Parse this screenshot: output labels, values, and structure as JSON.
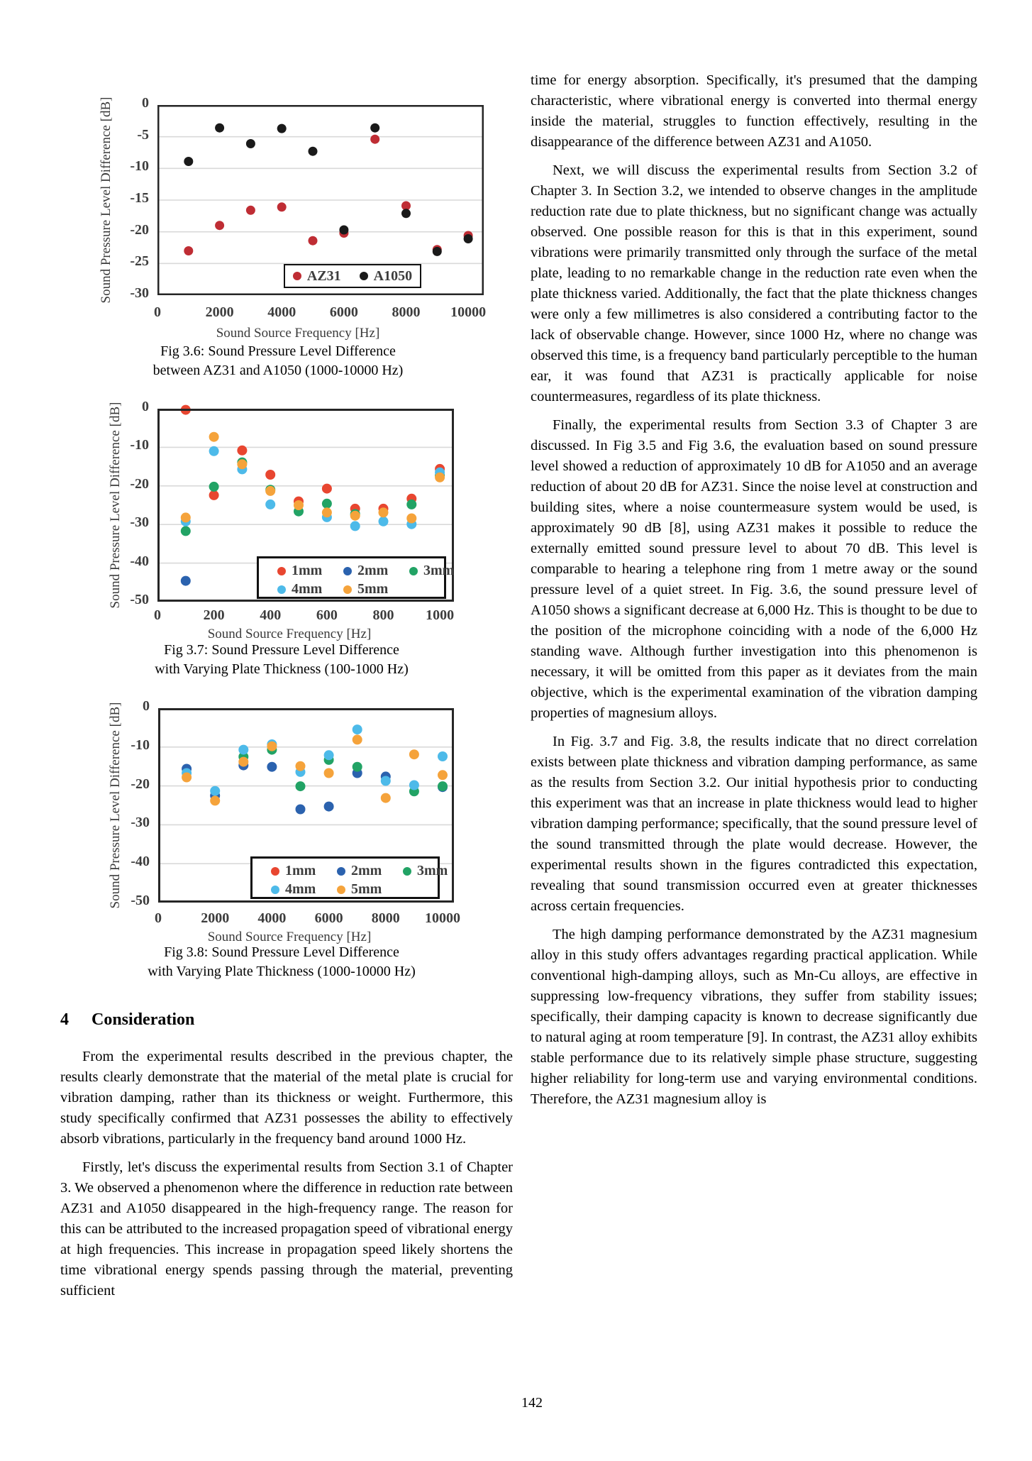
{
  "page": {
    "number": "142"
  },
  "left_column": {
    "section_heading": {
      "number": "4",
      "title": "Consideration"
    },
    "paragraphs": [
      "From the experimental results described in the previous chapter, the results clearly demonstrate that the material of the metal plate is crucial for vibration damping, rather than its thickness or weight. Furthermore, this study specifically confirmed that AZ31 possesses the ability to effectively absorb vibrations, particularly in the frequency band around 1000 Hz.",
      "Firstly, let's discuss the experimental results from Section 3.1 of Chapter 3. We observed a phenomenon where the difference in reduction rate between AZ31 and A1050 disappeared in the high-frequency range. The reason for this can be attributed to the increased propagation speed of vibrational energy at high frequencies. This increase in propagation speed likely shortens the time vibrational energy spends passing through the material, preventing sufficient"
    ]
  },
  "right_column": {
    "paragraphs": [
      "time for energy absorption. Specifically, it's presumed that the damping characteristic, where vibrational energy is converted into thermal energy inside the material, struggles to function effectively, resulting in the disappearance of the difference between AZ31 and A1050.",
      "Next, we will discuss the experimental results from Section 3.2 of Chapter 3. In Section 3.2, we intended to observe changes in the amplitude reduction rate due to plate thickness, but no significant change was actually observed. One possible reason for this is that in this experiment, sound vibrations were primarily transmitted only through the surface of the metal plate, leading to no remarkable change in the reduction rate even when the plate thickness varied. Additionally, the fact that the plate thickness changes were only a few millimetres is also considered a contributing factor to the lack of observable change. However, since 1000 Hz, where no change was observed this time, is a frequency band particularly perceptible to the human ear, it was found that AZ31 is practically applicable for noise countermeasures, regardless of its plate thickness.",
      "Finally, the experimental results from Section 3.3 of Chapter 3 are discussed. In Fig 3.5 and Fig 3.6, the evaluation based on sound pressure level showed a reduction of approximately 10 dB for A1050 and an average reduction of about 20 dB for AZ31. Since the noise level at construction and building sites, where a noise countermeasure system would be used, is approximately 90 dB [8], using AZ31 makes it possible to reduce the externally emitted sound pressure level to about 70 dB. This level is comparable to hearing a telephone ring from 1 metre away or the sound pressure level of a quiet street. In Fig. 3.6, the sound pressure level of A1050 shows a significant decrease at 6,000 Hz. This is thought to be due to the position of the microphone coinciding with a node of the 6,000 Hz standing wave. Although further investigation into this phenomenon is necessary, it will be omitted from this paper as it deviates from the main objective, which is the experimental examination of the vibration damping properties of magnesium alloys.",
      "In Fig. 3.7 and Fig. 3.8, the results indicate that no direct correlation exists between plate thickness and vibration damping performance, as same as the results from Section 3.2. Our initial hypothesis prior to conducting this experiment was that an increase in plate thickness would lead to higher vibration damping performance; specifically, that the sound pressure level of the sound transmitted through the plate would decrease. However, the experimental results shown in the figures contradicted this expectation, revealing that sound transmission occurred even at greater thicknesses across certain frequencies.",
      "The high damping performance demonstrated by the AZ31 magnesium alloy in this study offers advantages regarding practical application. While conventional high-damping alloys, such as Mn-Cu alloys, are effective in suppressing low-frequency vibrations, they suffer from stability issues; specifically, their damping capacity is known to decrease significantly due to natural aging at room temperature [9]. In contrast, the AZ31 alloy exhibits stable performance due to its relatively simple phase structure, suggesting higher reliability for long-term use and varying environmental conditions. Therefore, the AZ31 magnesium alloy is"
    ]
  },
  "figures": [
    {
      "id": "fig36",
      "caption_line1": "Fig 3.6: Sound Pressure Level Difference",
      "caption_line2": "between AZ31 and A1050 (1000-10000 Hz)",
      "xlabel": "Sound Source Frequency [Hz]",
      "ylabel": "Sound Pressure Level Difference [dB]",
      "chart_data": {
        "type": "scatter",
        "x": [
          1000,
          2000,
          3000,
          4000,
          5000,
          6000,
          7000,
          8000,
          9000,
          10000
        ],
        "series": [
          {
            "name": "AZ31",
            "color": "#bf2d34",
            "values": [
              -23.0,
              -19.0,
              -16.6,
              -16.1,
              -21.4,
              -20.2,
              -5.4,
              -15.9,
              -22.8,
              -20.6
            ]
          },
          {
            "name": "A1050",
            "color": "#1a1a1a",
            "values": [
              -8.9,
              -3.6,
              -6.1,
              -3.7,
              -7.3,
              -19.7,
              -3.6,
              -17.1,
              -23.1,
              -21.1
            ]
          }
        ],
        "x_ticks": [
          0,
          2000,
          4000,
          6000,
          8000,
          10000
        ],
        "y_ticks": [
          0,
          -5,
          -10,
          -15,
          -20,
          -25,
          -30
        ],
        "xlim": [
          0,
          10500
        ],
        "ylim": [
          -30,
          0
        ],
        "grid": true,
        "legend_position": "inside-bottom-right"
      }
    },
    {
      "id": "fig37",
      "caption_line1": "Fig 3.7: Sound Pressure Level Difference",
      "caption_line2": "with Varying Plate Thickness (100-1000 Hz)",
      "xlabel": "Sound Source Frequency [Hz]",
      "ylabel": "Sound Pressure Level Difference [dB]",
      "chart_data": {
        "type": "scatter",
        "x": [
          100,
          200,
          300,
          400,
          500,
          600,
          700,
          800,
          900,
          1000
        ],
        "series": [
          {
            "name": "1mm",
            "color": "#e84630",
            "values": [
              -0.3,
              -22.4,
              -10.8,
              -17.1,
              -24.0,
              -20.7,
              -25.9,
              -25.9,
              -23.3,
              -15.6
            ]
          },
          {
            "name": "2mm",
            "color": "#2b62ae",
            "values": [
              -44.6,
              null,
              null,
              null,
              null,
              null,
              null,
              null,
              null,
              null
            ]
          },
          {
            "name": "3mm",
            "color": "#22a365",
            "values": [
              -31.7,
              -20.2,
              -13.9,
              -21.0,
              -26.6,
              -24.6,
              -27.3,
              null,
              -24.8,
              -17.3
            ]
          },
          {
            "name": "4mm",
            "color": "#4dbae9",
            "values": [
              -29.2,
              -11.0,
              -15.7,
              -24.8,
              null,
              -28.1,
              -30.4,
              -29.2,
              -29.9,
              -16.5
            ]
          },
          {
            "name": "5mm",
            "color": "#f5a33b",
            "values": [
              -28.2,
              -7.3,
              -14.4,
              -21.3,
              -25.0,
              -26.9,
              -27.7,
              -26.9,
              -28.4,
              -17.8
            ]
          }
        ],
        "x_ticks": [
          0,
          200,
          400,
          600,
          800,
          1000
        ],
        "y_ticks": [
          0,
          -10,
          -20,
          -30,
          -40,
          -50
        ],
        "xlim": [
          0,
          1050
        ],
        "ylim": [
          -50,
          0
        ],
        "grid": true,
        "legend_position": "inside-bottom-center"
      }
    },
    {
      "id": "fig38",
      "caption_line1": "Fig 3.8: Sound Pressure Level Difference",
      "caption_line2": "with Varying Plate Thickness (1000-10000 Hz)",
      "xlabel": "Sound Source Frequency [Hz]",
      "ylabel": "Sound Pressure Level Difference [dB]",
      "chart_data": {
        "type": "scatter",
        "x": [
          1000,
          2000,
          3000,
          4000,
          5000,
          6000,
          7000,
          8000,
          9000,
          10000
        ],
        "series": [
          {
            "name": "1mm",
            "color": "#e84630",
            "values": [
              null,
              null,
              null,
              null,
              null,
              null,
              null,
              null,
              null,
              null
            ]
          },
          {
            "name": "2mm",
            "color": "#2b62ae",
            "values": [
              -15.6,
              -22.5,
              -14.7,
              -15.1,
              -26.0,
              -25.3,
              -16.7,
              -17.6,
              null,
              -20.3
            ]
          },
          {
            "name": "3mm",
            "color": "#22a365",
            "values": [
              null,
              null,
              -12.5,
              -10.7,
              -20.1,
              -13.3,
              -15.1,
              null,
              -21.4,
              -20.1
            ]
          },
          {
            "name": "4mm",
            "color": "#4dbae9",
            "values": [
              -16.7,
              -21.3,
              -10.7,
              -9.3,
              -16.4,
              -12.1,
              -5.5,
              -18.7,
              -19.8,
              -12.4
            ]
          },
          {
            "name": "5mm",
            "color": "#f5a33b",
            "values": [
              -17.8,
              -23.8,
              -13.8,
              -9.8,
              -14.9,
              -16.7,
              -8.1,
              -23.1,
              -11.9,
              -17.2
            ]
          }
        ],
        "x_ticks": [
          0,
          2000,
          4000,
          6000,
          8000,
          10000
        ],
        "y_ticks": [
          0,
          -10,
          -20,
          -30,
          -40,
          -50
        ],
        "xlim": [
          0,
          10400
        ],
        "ylim": [
          -50,
          0
        ],
        "grid": true,
        "legend_position": "inside-bottom-center"
      }
    }
  ]
}
